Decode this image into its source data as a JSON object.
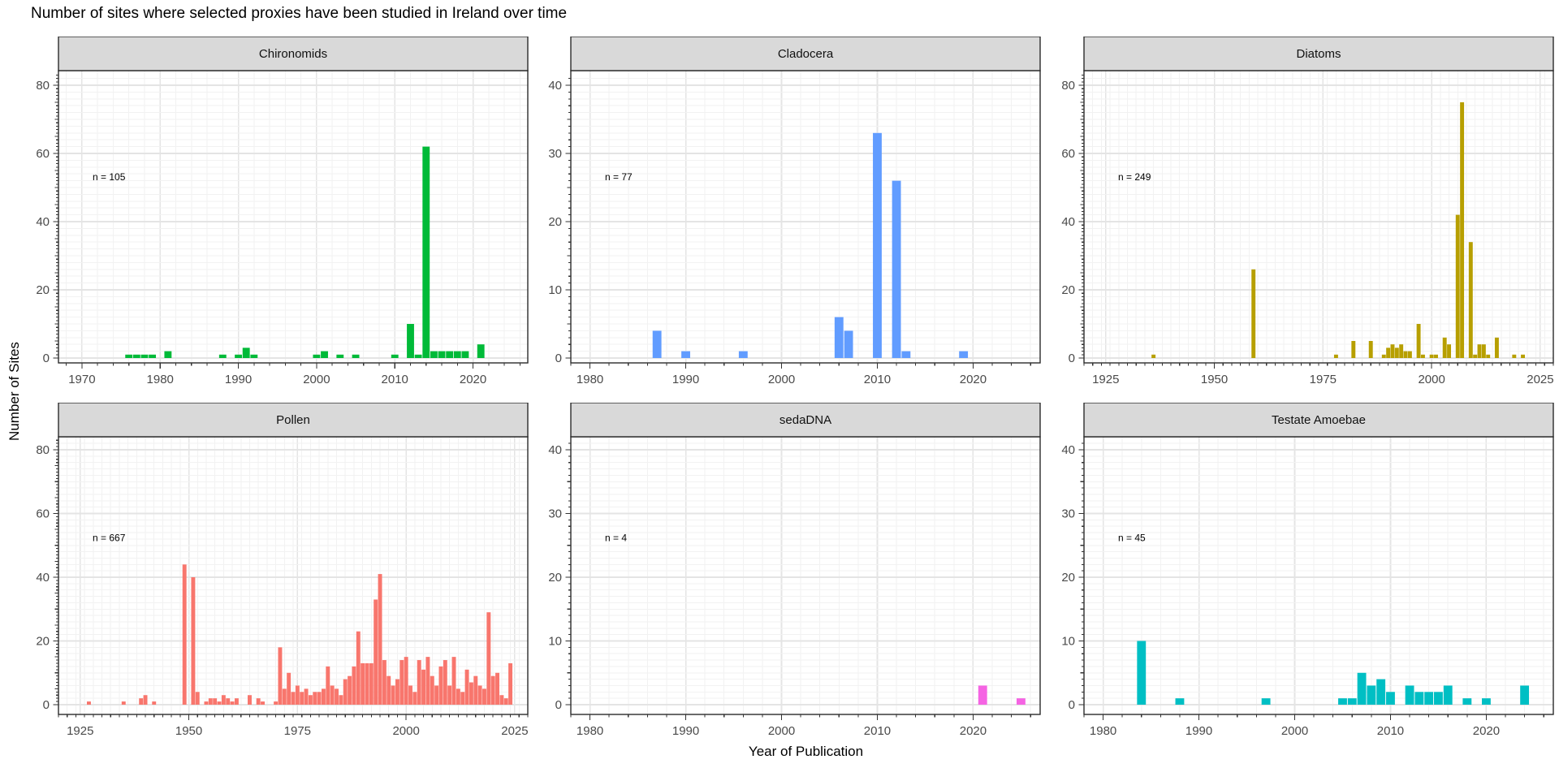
{
  "title": "Number of sites where selected proxies have been studied in Ireland over time",
  "ylabel": "Number of Sites",
  "xlabel": "Year of Publication",
  "theme": {
    "strip_bg": "#D9D9D9",
    "panel_border": "#2b2b2b",
    "grid_minor": "#F2F2F2",
    "grid_major": "#E4E4E4",
    "tick_color": "#333333",
    "tick_label_color": "#4a4a4a"
  },
  "chart_data": {
    "type": "bar",
    "title": "Number of sites where selected proxies have been studied in Ireland over time",
    "xlabel": "Year of Publication",
    "ylabel": "Number of Sites",
    "grid": true,
    "legend": "none",
    "facets": [
      {
        "label": "Chironomids",
        "n_label": "n = 105",
        "color": "#00BA38",
        "x_domain": [
          1967,
          2027
        ],
        "x_ticks": [
          1970,
          1980,
          1990,
          2000,
          2010,
          2020
        ],
        "y_ticks": [
          0,
          20,
          40,
          60,
          80
        ],
        "y_max": 80,
        "years": [
          1976,
          1977,
          1978,
          1979,
          1981,
          1988,
          1990,
          1991,
          1992,
          2000,
          2001,
          2003,
          2005,
          2010,
          2012,
          2013,
          2014,
          2015,
          2016,
          2017,
          2018,
          2019,
          2021
        ],
        "values": [
          1,
          1,
          1,
          1,
          2,
          1,
          1,
          3,
          1,
          1,
          2,
          1,
          1,
          1,
          10,
          1,
          62,
          2,
          2,
          2,
          2,
          2,
          4
        ]
      },
      {
        "label": "Cladocera",
        "n_label": "n = 77",
        "color": "#619CFF",
        "x_domain": [
          1978,
          2027
        ],
        "x_ticks": [
          1980,
          1990,
          2000,
          2010,
          2020
        ],
        "y_ticks": [
          0,
          10,
          20,
          30,
          40
        ],
        "y_max": 40,
        "years": [
          1987,
          1990,
          1996,
          2006,
          2007,
          2010,
          2012,
          2013,
          2019
        ],
        "values": [
          4,
          1,
          1,
          6,
          4,
          33,
          26,
          1,
          1
        ]
      },
      {
        "label": "Diatoms",
        "n_label": "n = 249",
        "color": "#B79F00",
        "x_domain": [
          1920,
          2028
        ],
        "x_ticks": [
          1925,
          1950,
          1975,
          2000,
          2025
        ],
        "y_ticks": [
          0,
          20,
          40,
          60,
          80
        ],
        "y_max": 80,
        "years": [
          1936,
          1959,
          1978,
          1982,
          1986,
          1989,
          1990,
          1991,
          1992,
          1993,
          1994,
          1995,
          1997,
          1998,
          2000,
          2001,
          2003,
          2004,
          2006,
          2007,
          2009,
          2010,
          2011,
          2012,
          2013,
          2015,
          2019,
          2021
        ],
        "values": [
          1,
          26,
          1,
          5,
          5,
          1,
          3,
          4,
          3,
          4,
          2,
          2,
          10,
          1,
          1,
          1,
          6,
          4,
          42,
          75,
          34,
          1,
          4,
          4,
          1,
          6,
          1,
          1
        ]
      },
      {
        "label": "Pollen",
        "n_label": "n = 667",
        "color": "#F8766D",
        "x_domain": [
          1920,
          2028
        ],
        "x_ticks": [
          1925,
          1950,
          1975,
          2000,
          2025
        ],
        "y_ticks": [
          0,
          20,
          40,
          60,
          80
        ],
        "y_max": 80,
        "years": [
          1927,
          1935,
          1939,
          1940,
          1942,
          1949,
          1951,
          1952,
          1954,
          1955,
          1956,
          1957,
          1958,
          1959,
          1960,
          1961,
          1964,
          1966,
          1967,
          1970,
          1971,
          1972,
          1973,
          1974,
          1975,
          1976,
          1977,
          1978,
          1979,
          1980,
          1981,
          1982,
          1983,
          1984,
          1985,
          1986,
          1987,
          1988,
          1989,
          1990,
          1991,
          1992,
          1993,
          1994,
          1995,
          1996,
          1997,
          1998,
          1999,
          2000,
          2001,
          2002,
          2003,
          2004,
          2005,
          2006,
          2007,
          2008,
          2009,
          2010,
          2011,
          2012,
          2013,
          2014,
          2015,
          2016,
          2017,
          2018,
          2019,
          2020,
          2021,
          2022,
          2023,
          2024
        ],
        "values": [
          1,
          1,
          2,
          3,
          1,
          44,
          40,
          4,
          1,
          2,
          2,
          1,
          3,
          2,
          1,
          2,
          3,
          2,
          1,
          1,
          18,
          5,
          10,
          4,
          6,
          4,
          5,
          3,
          4,
          4,
          5,
          12,
          6,
          5,
          3,
          8,
          9,
          12,
          23,
          13,
          13,
          13,
          33,
          41,
          14,
          9,
          6,
          8,
          14,
          15,
          6,
          4,
          14,
          11,
          15,
          9,
          6,
          12,
          14,
          6,
          15,
          5,
          4,
          11,
          7,
          9,
          6,
          5,
          29,
          9,
          10,
          3,
          2,
          13
        ]
      },
      {
        "label": "sedaDNA",
        "n_label": "n = 4",
        "color": "#F564E3",
        "x_domain": [
          1978,
          2027
        ],
        "x_ticks": [
          1980,
          1990,
          2000,
          2010,
          2020
        ],
        "y_ticks": [
          0,
          10,
          20,
          30,
          40
        ],
        "y_max": 40,
        "years": [
          2021,
          2025
        ],
        "values": [
          3,
          1
        ]
      },
      {
        "label": "Testate Amoebae",
        "n_label": "n = 45",
        "color": "#00BFC4",
        "x_domain": [
          1978,
          2027
        ],
        "x_ticks": [
          1980,
          1990,
          2000,
          2010,
          2020
        ],
        "y_ticks": [
          0,
          10,
          20,
          30,
          40
        ],
        "y_max": 40,
        "years": [
          1984,
          1988,
          1997,
          2005,
          2006,
          2007,
          2008,
          2009,
          2010,
          2012,
          2013,
          2014,
          2015,
          2016,
          2018,
          2020,
          2024
        ],
        "values": [
          10,
          1,
          1,
          1,
          1,
          5,
          3,
          4,
          2,
          3,
          2,
          2,
          2,
          3,
          1,
          1,
          3
        ]
      }
    ]
  }
}
